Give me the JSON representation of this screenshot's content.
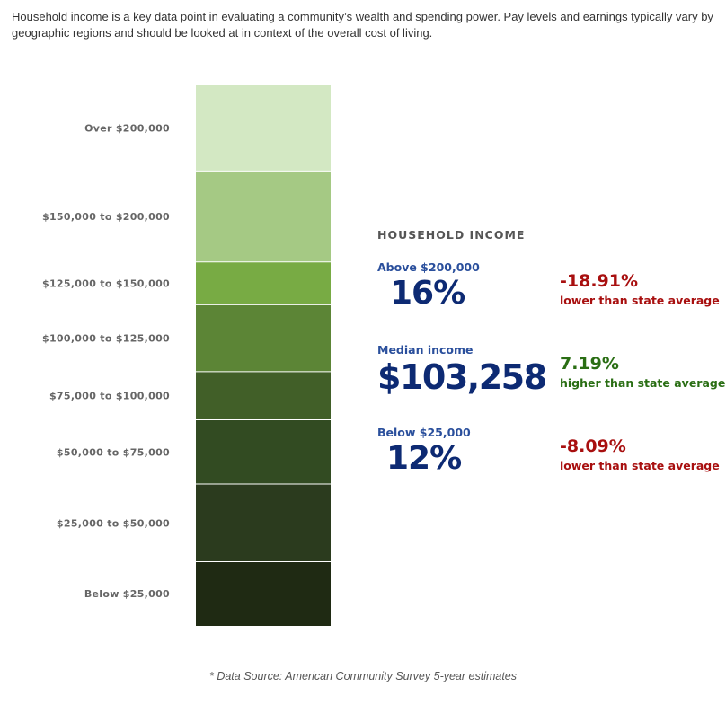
{
  "intro": "Household income is a key data point in evaluating a community’s wealth and spending power. Pay levels and earnings typically vary by geographic regions and should be looked at in context of the overall cost of living.",
  "chart_data": {
    "type": "bar",
    "title": "",
    "xlabel": "",
    "ylabel": "",
    "categories": [
      "Over $200,000",
      "$150,000 to $200,000",
      "$125,000 to $150,000",
      "$100,000 to $125,000",
      "$75,000 to $100,000",
      "$50,000 to $75,000",
      "$25,000 to $50,000",
      "Below $25,000"
    ],
    "values": [
      16,
      17,
      8,
      12.5,
      9,
      12,
      14.5,
      12
    ],
    "units": "percent of households",
    "colors": [
      "#d3e8c3",
      "#a5c984",
      "#78ab44",
      "#5c8536",
      "#415f28",
      "#324b22",
      "#2b3b1e",
      "#1f2a13"
    ]
  },
  "stats": {
    "title": "HOUSEHOLD INCOME",
    "items": [
      {
        "label": "Above $200,000",
        "value": "16%",
        "comparison": "-18.91%",
        "comparison_text": "lower than state average",
        "color": "#a80f0f"
      },
      {
        "label": "Median income",
        "value": "$103,258",
        "comparison": "7.19%",
        "comparison_text": "higher than state average",
        "color": "#2a6e14"
      },
      {
        "label": "Below $25,000",
        "value": "12%",
        "comparison": "-8.09%",
        "comparison_text": "lower than state average",
        "color": "#a80f0f"
      }
    ]
  },
  "footnote": "* Data Source: American Community Survey 5-year estimates"
}
